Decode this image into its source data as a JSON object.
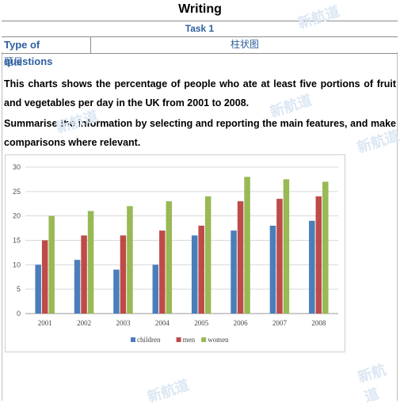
{
  "header": {
    "title": "Writing",
    "task": "Task 1",
    "type_label": "Type of questions",
    "type_value": "柱状图",
    "section_label": "题目"
  },
  "prompt": {
    "paragraph1": "This charts shows the percentage of people who ate at least five portions of fruit and vegetables per day in the UK from 2001 to 2008.",
    "paragraph2": "Summarise the information by selecting and reporting the main features, and make comparisons where relevant."
  },
  "watermark_text": "新航道",
  "chart_data": {
    "type": "bar",
    "categories": [
      "2001",
      "2002",
      "2003",
      "2004",
      "2005",
      "2006",
      "2007",
      "2008"
    ],
    "series": [
      {
        "name": "children",
        "color": "#4a7ebb",
        "values": [
          10,
          11,
          9,
          10,
          16,
          17,
          18,
          19
        ]
      },
      {
        "name": "men",
        "color": "#be4b48",
        "values": [
          15,
          16,
          16,
          17,
          18,
          23,
          23.5,
          24
        ]
      },
      {
        "name": "women",
        "color": "#98b954",
        "values": [
          20,
          21,
          22,
          23,
          24,
          28,
          27.5,
          27
        ]
      }
    ],
    "yticks": [
      0,
      5,
      10,
      15,
      20,
      25,
      30
    ],
    "ylim": [
      0,
      30
    ],
    "grid": true,
    "legend": "bottom"
  }
}
